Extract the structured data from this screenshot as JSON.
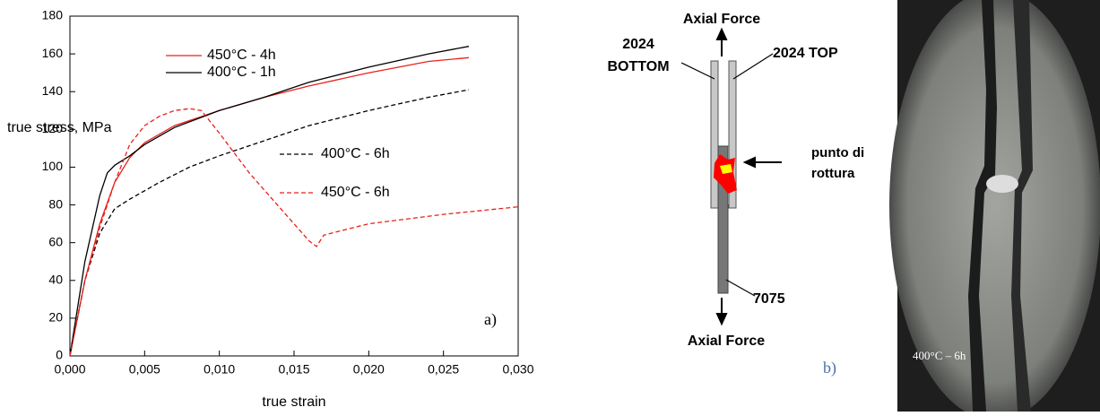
{
  "chart_data": {
    "type": "line",
    "xlabel": "true strain",
    "ylabel": "true stress, MPa",
    "annotation": "a)",
    "xlim": [
      0,
      0.03
    ],
    "ylim": [
      0,
      180
    ],
    "xticks": [
      {
        "value": 0,
        "label": "0,000"
      },
      {
        "value": 0.005,
        "label": "0,005"
      },
      {
        "value": 0.01,
        "label": "0,010"
      },
      {
        "value": 0.015,
        "label": "0,015"
      },
      {
        "value": 0.02,
        "label": "0,020"
      },
      {
        "value": 0.025,
        "label": "0,025"
      },
      {
        "value": 0.03,
        "label": "0,030"
      }
    ],
    "yticks": [
      0,
      20,
      40,
      60,
      80,
      100,
      120,
      140,
      160,
      180
    ],
    "series": [
      {
        "name": "450°C - 4h",
        "color": "#e8211c",
        "dashed": false,
        "x": [
          0,
          0.001,
          0.002,
          0.003,
          0.004,
          0.005,
          0.007,
          0.01,
          0.013,
          0.016,
          0.02,
          0.024,
          0.0267
        ],
        "values": [
          0,
          40,
          70,
          92,
          105,
          113,
          122,
          130,
          137,
          143,
          150,
          156,
          158
        ]
      },
      {
        "name": "400°C - 1h",
        "color": "#000000",
        "dashed": false,
        "x": [
          0,
          0.001,
          0.002,
          0.0025,
          0.003,
          0.004,
          0.005,
          0.007,
          0.01,
          0.013,
          0.016,
          0.02,
          0.024,
          0.0267
        ],
        "values": [
          0,
          50,
          85,
          97,
          101,
          106,
          112,
          121,
          130,
          137,
          145,
          153,
          160,
          164
        ]
      },
      {
        "name": "400°C - 6h",
        "color": "#000000",
        "dashed": true,
        "x": [
          0,
          0.001,
          0.002,
          0.003,
          0.004,
          0.006,
          0.008,
          0.01,
          0.013,
          0.016,
          0.02,
          0.024,
          0.0267
        ],
        "values": [
          0,
          40,
          65,
          78,
          83,
          92,
          100,
          106,
          114,
          122,
          130,
          137,
          141
        ]
      },
      {
        "name": "450°C - 6h",
        "color": "#e8211c",
        "dashed": true,
        "x": [
          0,
          0.001,
          0.002,
          0.003,
          0.004,
          0.005,
          0.006,
          0.007,
          0.008,
          0.0088,
          0.01,
          0.012,
          0.014,
          0.016,
          0.0165,
          0.017,
          0.02,
          0.025,
          0.03
        ],
        "values": [
          0,
          40,
          68,
          92,
          112,
          122,
          127,
          130,
          131,
          130,
          118,
          97,
          79,
          61,
          58,
          64,
          70,
          75,
          79
        ]
      }
    ]
  },
  "diagram": {
    "top_force": "Axial Force",
    "bottom_label_1": "2024",
    "bottom_label_2": "BOTTOM",
    "top_label": "2024 TOP",
    "break_1": "punto di",
    "break_2": "rottura",
    "inner_label": "7075",
    "bottom_force": "Axial Force",
    "panel": "b)"
  },
  "photo": {
    "label": "400°C – 6h"
  }
}
